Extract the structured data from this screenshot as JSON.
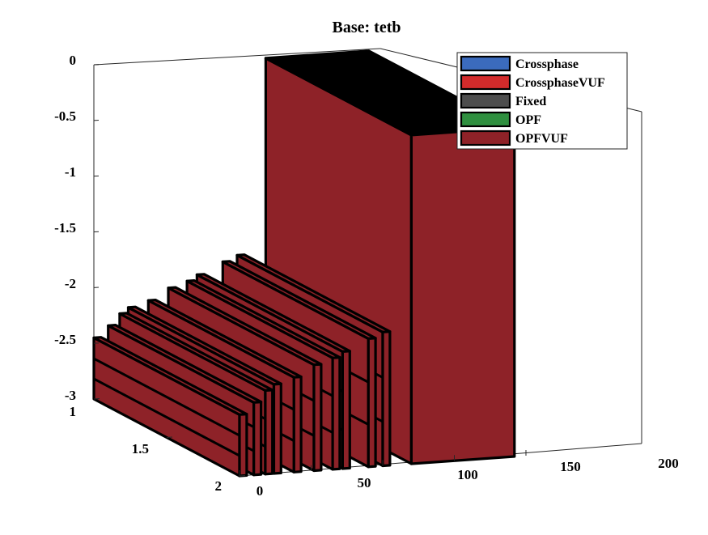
{
  "chart_data": {
    "type": "3d-ribbon",
    "title": "Base: tetb",
    "xlabel": "",
    "ylabel": "",
    "zlabel": "",
    "x_ticks": [
      "0",
      "50",
      "100",
      "150",
      "200"
    ],
    "y_ticks": [
      "1",
      "1.5",
      "2"
    ],
    "z_ticks": [
      "0",
      "-0.5",
      "-1",
      "-1.5",
      "-2",
      "-2.5",
      "-3"
    ],
    "xlim": [
      0,
      200
    ],
    "ylim": [
      1,
      2
    ],
    "zlim": [
      -3,
      0
    ],
    "legend": {
      "location": "top-right",
      "entries": [
        {
          "label": "Crossphase",
          "color": "#3b6bbd"
        },
        {
          "label": "CrossphaseVUF",
          "color": "#d22b2b"
        },
        {
          "label": "Fixed",
          "color": "#4d4d4d"
        },
        {
          "label": "OPF",
          "color": "#2f8f3f"
        },
        {
          "label": "OPFVUF",
          "color": "#8e2228"
        }
      ]
    },
    "series_color": "#8e2228",
    "ribbons": [
      {
        "x": 0,
        "z": -2.45
      },
      {
        "x": 10,
        "z": -2.35
      },
      {
        "x": 18,
        "z": -2.25
      },
      {
        "x": 24,
        "z": -2.2
      },
      {
        "x": 38,
        "z": -2.15
      },
      {
        "x": 52,
        "z": -2.05
      },
      {
        "x": 65,
        "z": -2.0
      },
      {
        "x": 72,
        "z": -1.95
      },
      {
        "x": 90,
        "z": -1.85
      },
      {
        "x": 100,
        "z": -1.8
      },
      {
        "x": 120,
        "z": -0.05
      }
    ]
  }
}
